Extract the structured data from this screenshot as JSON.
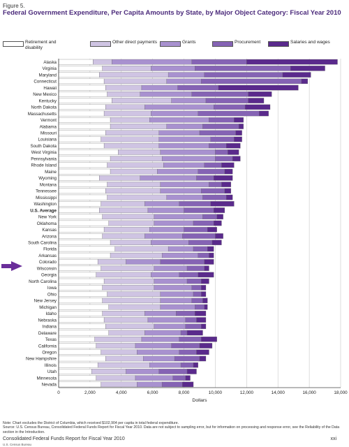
{
  "figure_label": "Figure 5.",
  "title": "Federal Government Expenditure, Per Capita Amounts by State, by Major Object Category: Fiscal Year 2010",
  "colors": {
    "Retirement and disability": "#ffffff",
    "Other direct payments": "#cfc4e3",
    "Grants": "#a891cf",
    "Procurement": "#8563b4",
    "Salaries and wages": "#5a2a8c",
    "title": "#4b2a7b",
    "arrow": "#6a2e9a"
  },
  "chart_data": {
    "type": "bar",
    "orientation": "horizontal",
    "stacked": true,
    "xlabel": "Dollars",
    "xlim": [
      0,
      18000
    ],
    "xticks": [
      "0",
      "2,000",
      "4,000",
      "6,000",
      "8,000",
      "10,000",
      "12,000",
      "14,000",
      "16,000",
      "18,000"
    ],
    "grid": true,
    "legend_position": "top",
    "highlighted": "Wisconsin",
    "bold_categories": [
      "U.S. Average"
    ],
    "categories": [
      "Alaska",
      "Virginia",
      "Maryland",
      "Connecticut",
      "Hawaii",
      "New Mexico",
      "Kentucky",
      "North Dakota",
      "Massachusetts",
      "Vermont",
      "Alabama",
      "Missouri",
      "Louisiana",
      "South Dakota",
      "West Virginia",
      "Pennsylvania",
      "Rhode Island",
      "Maine",
      "Wyoming",
      "Montana",
      "Tennessee",
      "Mississippi",
      "Washington",
      "U.S. Average",
      "New York",
      "Oklahoma",
      "Kansas",
      "Arizona",
      "South Carolina",
      "Florida",
      "Arkansas",
      "Colorado",
      "Wisconsin",
      "Georgia",
      "North Carolina",
      "Iowa",
      "Ohio",
      "New Jersey",
      "Michigan",
      "Idaho",
      "Nebraska",
      "Indiana",
      "Delaware",
      "Texas",
      "California",
      "Oregon",
      "New Hampshire",
      "Illinois",
      "Utah",
      "Minnesota",
      "Nevada"
    ],
    "series": [
      {
        "name": "Retirement and disability",
        "values": [
          2200,
          2800,
          2600,
          2900,
          3000,
          3100,
          3400,
          3000,
          2900,
          3300,
          3300,
          3000,
          2700,
          2900,
          3800,
          3300,
          3100,
          3300,
          2600,
          3100,
          3000,
          3100,
          2700,
          2600,
          2800,
          3200,
          2900,
          2800,
          3300,
          3600,
          3300,
          2500,
          2700,
          2400,
          2900,
          2800,
          3100,
          2800,
          3200,
          2800,
          2900,
          3000,
          3200,
          2300,
          2400,
          2700,
          3000,
          2500,
          2100,
          2400,
          2700
        ]
      },
      {
        "name": "Other direct payments",
        "values": [
          1200,
          3100,
          4400,
          4000,
          2300,
          2100,
          3800,
          2500,
          3000,
          2500,
          3600,
          3400,
          3700,
          3500,
          2700,
          3300,
          3600,
          3000,
          2600,
          3400,
          3500,
          3800,
          2800,
          3100,
          3300,
          2900,
          2900,
          2700,
          2600,
          3400,
          3300,
          1800,
          3400,
          3500,
          3200,
          3300,
          3400,
          3700,
          3300,
          2700,
          2800,
          3100,
          2300,
          3000,
          2500,
          2300,
          2400,
          3300,
          2200,
          2500,
          2300
        ]
      },
      {
        "name": "Grants",
        "values": [
          5100,
          2800,
          2300,
          2200,
          2300,
          3300,
          2200,
          4400,
          3000,
          3800,
          2300,
          2600,
          3300,
          3200,
          3500,
          3400,
          2600,
          2600,
          3600,
          3100,
          2600,
          2300,
          2200,
          2300,
          3100,
          2500,
          2200,
          2400,
          2400,
          1600,
          2300,
          2200,
          2100,
          1800,
          2100,
          2400,
          2100,
          2000,
          2200,
          2000,
          2400,
          2000,
          2300,
          2400,
          2300,
          2700,
          2000,
          2000,
          2100,
          2400,
          1600
        ]
      },
      {
        "name": "Procurement",
        "values": [
          3500,
          6100,
          5000,
          6400,
          2600,
          3600,
          2700,
          2000,
          3900,
          1600,
          2300,
          2300,
          1500,
          1100,
          800,
          1100,
          1100,
          1700,
          1100,
          800,
          1500,
          1500,
          2000,
          1900,
          900,
          1300,
          1500,
          2100,
          1500,
          900,
          700,
          2800,
          1100,
          1200,
          900,
          600,
          500,
          700,
          600,
          1200,
          700,
          1000,
          400,
          1400,
          1800,
          1100,
          1600,
          800,
          1800,
          800,
          1300
        ]
      },
      {
        "name": "Salaries and wages",
        "values": [
          5800,
          2200,
          1800,
          400,
          5100,
          1500,
          1000,
          1600,
          600,
          600,
          300,
          400,
          500,
          900,
          700,
          500,
          800,
          500,
          1200,
          600,
          400,
          400,
          1500,
          700,
          400,
          500,
          600,
          500,
          600,
          400,
          300,
          600,
          300,
          1000,
          500,
          300,
          300,
          300,
          200,
          700,
          600,
          300,
          1000,
          1000,
          800,
          800,
          400,
          300,
          600,
          300,
          700
        ]
      }
    ]
  },
  "footnote": {
    "note": "Note:  Chart excludes the District of Columbia, which received $102,904 per capita in total federal expenditure.",
    "source": "Source: U.S. Census Bureau, Consolidated Federal Funds Report for Fiscal Year 2010. Data are not subject to sampling error, but for information on processing and response error, see the Reliability of the Data section in the Introduction."
  },
  "footer": {
    "title": "Consolidated Federal Funds Report for Fiscal Year 2010",
    "org": "U.S. Census Bureau",
    "page": "xxi"
  }
}
